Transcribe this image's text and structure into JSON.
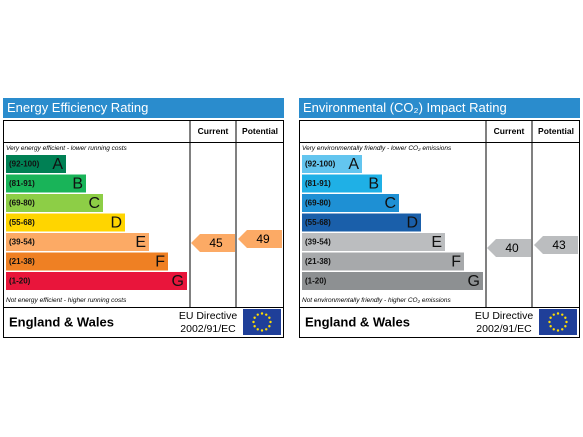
{
  "panels": [
    {
      "title": "Energy Efficiency Rating",
      "header_current": "Current",
      "header_potential": "Potential",
      "top_note": "Very energy efficient - lower running costs",
      "bottom_note": "Not energy efficient - higher running costs",
      "bands": [
        {
          "range": "(92-100)",
          "letter": "A",
          "color": "#008054"
        },
        {
          "range": "(81-91)",
          "letter": "B",
          "color": "#19b459"
        },
        {
          "range": "(69-80)",
          "letter": "C",
          "color": "#8dce46"
        },
        {
          "range": "(55-68)",
          "letter": "D",
          "color": "#ffd500"
        },
        {
          "range": "(39-54)",
          "letter": "E",
          "color": "#fcaa65"
        },
        {
          "range": "(21-38)",
          "letter": "F",
          "color": "#ef8023"
        },
        {
          "range": "(1-20)",
          "letter": "G",
          "color": "#e9153b"
        }
      ],
      "current": 45,
      "potential": 49,
      "arrow_color": "#fcaa65",
      "region": "England & Wales",
      "directive_1": "EU Directive",
      "directive_2": "2002/91/EC"
    },
    {
      "title": "Environmental (CO₂) Impact Rating",
      "header_current": "Current",
      "header_potential": "Potential",
      "top_note": "Very environmentally friendly - lower CO₂ emissions",
      "bottom_note": "Not environmentally friendly - higher CO₂ emissions",
      "bands": [
        {
          "range": "(92-100)",
          "letter": "A",
          "color": "#63c5ef"
        },
        {
          "range": "(81-91)",
          "letter": "B",
          "color": "#1fb0e6"
        },
        {
          "range": "(69-80)",
          "letter": "C",
          "color": "#1e90d4"
        },
        {
          "range": "(55-68)",
          "letter": "D",
          "color": "#1a5faa"
        },
        {
          "range": "(39-54)",
          "letter": "E",
          "color": "#bbbdbf"
        },
        {
          "range": "(21-38)",
          "letter": "F",
          "color": "#a7a9ab"
        },
        {
          "range": "(1-20)",
          "letter": "G",
          "color": "#8d9092"
        }
      ],
      "current": 40,
      "potential": 43,
      "arrow_color": "#bbbdbf",
      "region": "England & Wales",
      "directive_1": "EU Directive",
      "directive_2": "2002/91/EC"
    }
  ]
}
